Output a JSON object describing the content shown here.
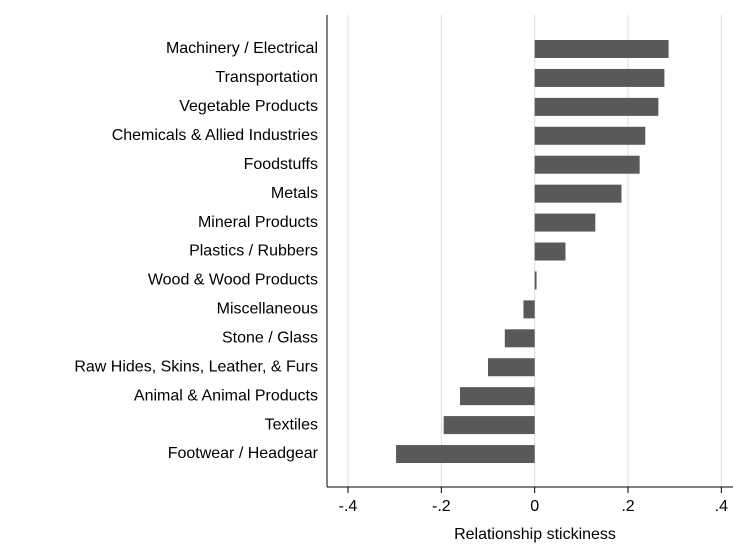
{
  "chart_data": {
    "type": "barh",
    "categories": [
      "Machinery / Electrical",
      "Transportation",
      "Vegetable Products",
      "Chemicals & Allied Industries",
      "Foodstuffs",
      "Metals",
      "Mineral Products",
      "Plastics / Rubbers",
      "Wood & Wood Products",
      "Miscellaneous",
      "Stone / Glass",
      "Raw Hides, Skins, Leather, & Furs",
      "Animal & Animal Products",
      "Textiles",
      "Footwear / Headgear"
    ],
    "values": [
      0.287,
      0.278,
      0.265,
      0.237,
      0.225,
      0.186,
      0.13,
      0.066,
      0.004,
      -0.024,
      -0.064,
      -0.1,
      -0.16,
      -0.195,
      -0.297
    ],
    "color": "#595959",
    "x_label": "Relationship stickiness",
    "xlim": [
      -0.445,
      0.425
    ],
    "xticks": [
      {
        "value": -0.4,
        "label": "-.4"
      },
      {
        "value": -0.2,
        "label": "-.2"
      },
      0,
      {
        "value": 0.2,
        "label": ".2"
      },
      {
        "value": 0.4,
        "label": ".4"
      }
    ],
    "grid": true
  }
}
